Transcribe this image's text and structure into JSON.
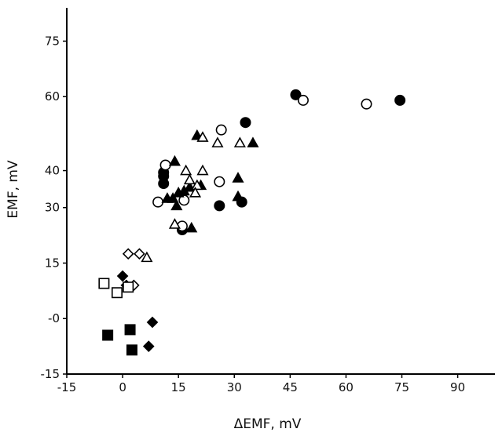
{
  "chart_data": {
    "type": "scatter",
    "title": "",
    "xlabel": "ΔEMF, mV",
    "ylabel": "EMF, mV",
    "xlim": [
      -15,
      100
    ],
    "ylim": [
      -15,
      84
    ],
    "x_ticks": [
      -15,
      0,
      15,
      30,
      45,
      60,
      75,
      90
    ],
    "x_tick_labels": [
      "-15",
      "0",
      "15",
      "30",
      "45",
      "60",
      "75",
      "90"
    ],
    "y_ticks": [
      -15,
      0,
      15,
      30,
      40,
      60,
      75
    ],
    "y_tick_labels": [
      "-15",
      "-0",
      "15",
      "30",
      "40",
      "60",
      "75"
    ],
    "grid": false,
    "legend": "none",
    "series": [
      {
        "marker": "filled-circle",
        "points": [
          {
            "x": 46.5,
            "y": 60.5
          },
          {
            "x": 74.5,
            "y": 59.0
          },
          {
            "x": 33.0,
            "y": 53.0
          },
          {
            "x": 11.0,
            "y": 39.5
          },
          {
            "x": 11.0,
            "y": 38.5
          },
          {
            "x": 11.0,
            "y": 36.5
          },
          {
            "x": 16.0,
            "y": 24.0
          },
          {
            "x": 26.0,
            "y": 30.5
          },
          {
            "x": 32.0,
            "y": 31.5
          }
        ]
      },
      {
        "marker": "open-circle",
        "points": [
          {
            "x": 48.5,
            "y": 59.0
          },
          {
            "x": 65.5,
            "y": 58.0
          },
          {
            "x": 26.5,
            "y": 51.0
          },
          {
            "x": 26.0,
            "y": 37.0
          },
          {
            "x": 11.5,
            "y": 41.5
          },
          {
            "x": 9.5,
            "y": 31.5
          },
          {
            "x": 16.5,
            "y": 32.0
          },
          {
            "x": 16.0,
            "y": 25.0
          }
        ]
      },
      {
        "marker": "filled-triangle",
        "points": [
          {
            "x": 14.0,
            "y": 42.5
          },
          {
            "x": 20.0,
            "y": 49.5
          },
          {
            "x": 35.0,
            "y": 47.5
          },
          {
            "x": 31.0,
            "y": 38.0
          },
          {
            "x": 21.0,
            "y": 36.0
          },
          {
            "x": 18.0,
            "y": 35.5
          },
          {
            "x": 16.5,
            "y": 34.5
          },
          {
            "x": 15.0,
            "y": 34.0
          },
          {
            "x": 12.0,
            "y": 32.5
          },
          {
            "x": 13.5,
            "y": 32.5
          },
          {
            "x": 14.5,
            "y": 30.5
          },
          {
            "x": 31.0,
            "y": 33.0
          },
          {
            "x": 18.5,
            "y": 24.5
          }
        ]
      },
      {
        "marker": "open-triangle",
        "points": [
          {
            "x": 21.5,
            "y": 49.0
          },
          {
            "x": 25.5,
            "y": 47.5
          },
          {
            "x": 31.5,
            "y": 47.5
          },
          {
            "x": 17.0,
            "y": 40.0
          },
          {
            "x": 21.5,
            "y": 40.0
          },
          {
            "x": 18.0,
            "y": 37.5
          },
          {
            "x": 20.0,
            "y": 36.0
          },
          {
            "x": 19.5,
            "y": 34.0
          },
          {
            "x": 14.0,
            "y": 25.5
          }
        ]
      },
      {
        "marker": "open-diamond",
        "points": [
          {
            "x": 1.5,
            "y": 17.5
          },
          {
            "x": 4.5,
            "y": 17.5
          },
          {
            "x": 3.0,
            "y": 9.0
          }
        ]
      },
      {
        "marker": "open-triangle",
        "points": [
          {
            "x": 6.5,
            "y": 16.5
          }
        ]
      },
      {
        "marker": "filled-diamond",
        "points": [
          {
            "x": 0.0,
            "y": 11.5
          },
          {
            "x": 1.0,
            "y": 9.0
          },
          {
            "x": 8.0,
            "y": -1.0
          },
          {
            "x": 7.0,
            "y": -7.5
          }
        ]
      },
      {
        "marker": "open-square",
        "points": [
          {
            "x": -5.0,
            "y": 9.5
          },
          {
            "x": -1.5,
            "y": 7.0
          },
          {
            "x": 1.5,
            "y": 8.5
          }
        ]
      },
      {
        "marker": "filled-square",
        "points": [
          {
            "x": -4.0,
            "y": -4.5
          },
          {
            "x": 2.0,
            "y": -3.0
          },
          {
            "x": 2.5,
            "y": -8.5
          }
        ]
      }
    ]
  }
}
